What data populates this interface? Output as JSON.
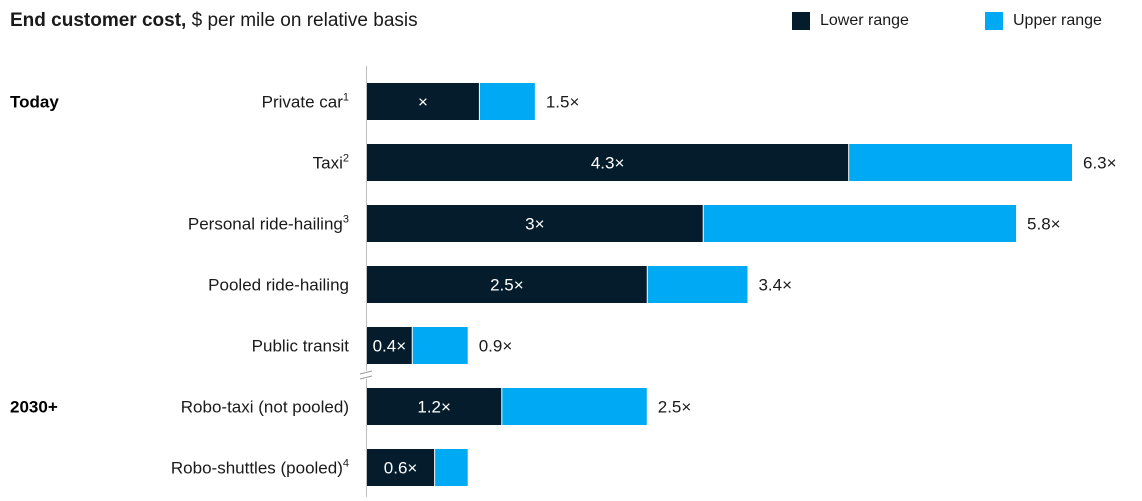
{
  "chart_data": {
    "type": "bar",
    "orientation": "horizontal",
    "stacked": true,
    "title_bold": "End customer cost,",
    "title_rest": " $ per mile on relative basis",
    "legend": {
      "placement": "top-right",
      "lower_label": "Lower range",
      "upper_label": "Upper range"
    },
    "colors": {
      "lower": "#051c2c",
      "upper": "#00a9f4",
      "axis": "#bfbfbf"
    },
    "groups": [
      {
        "label": "Today",
        "start_index": 0
      },
      {
        "label": "2030+",
        "start_index": 5
      }
    ],
    "categories": [
      {
        "label": "Private car",
        "sup": "1",
        "lower": 1.0,
        "upper": 1.5,
        "lower_text": "×",
        "upper_text": "1.5×"
      },
      {
        "label": "Taxi",
        "sup": "2",
        "lower": 4.3,
        "upper": 6.3,
        "lower_text": "4.3×",
        "upper_text": "6.3×"
      },
      {
        "label": "Personal ride-hailing",
        "sup": "3",
        "lower": 3.0,
        "upper": 5.8,
        "lower_text": "3×",
        "upper_text": "5.8×"
      },
      {
        "label": "Pooled ride-hailing",
        "sup": "",
        "lower": 2.5,
        "upper": 3.4,
        "lower_text": "2.5×",
        "upper_text": "3.4×"
      },
      {
        "label": "Public transit",
        "sup": "",
        "lower": 0.4,
        "upper": 0.9,
        "lower_text": "0.4×",
        "upper_text": "0.9×"
      },
      {
        "label": "Robo-taxi (not pooled)",
        "sup": "",
        "lower": 1.2,
        "upper": 2.5,
        "lower_text": "1.2×",
        "upper_text": "2.5×"
      },
      {
        "label": "Robo-shuttles (pooled)",
        "sup": "4",
        "lower": 0.6,
        "upper": 0.9,
        "lower_text": "0.6×",
        "upper_text": ""
      }
    ],
    "axis_break_after_index": 4,
    "xlim": [
      0,
      6.3
    ]
  }
}
